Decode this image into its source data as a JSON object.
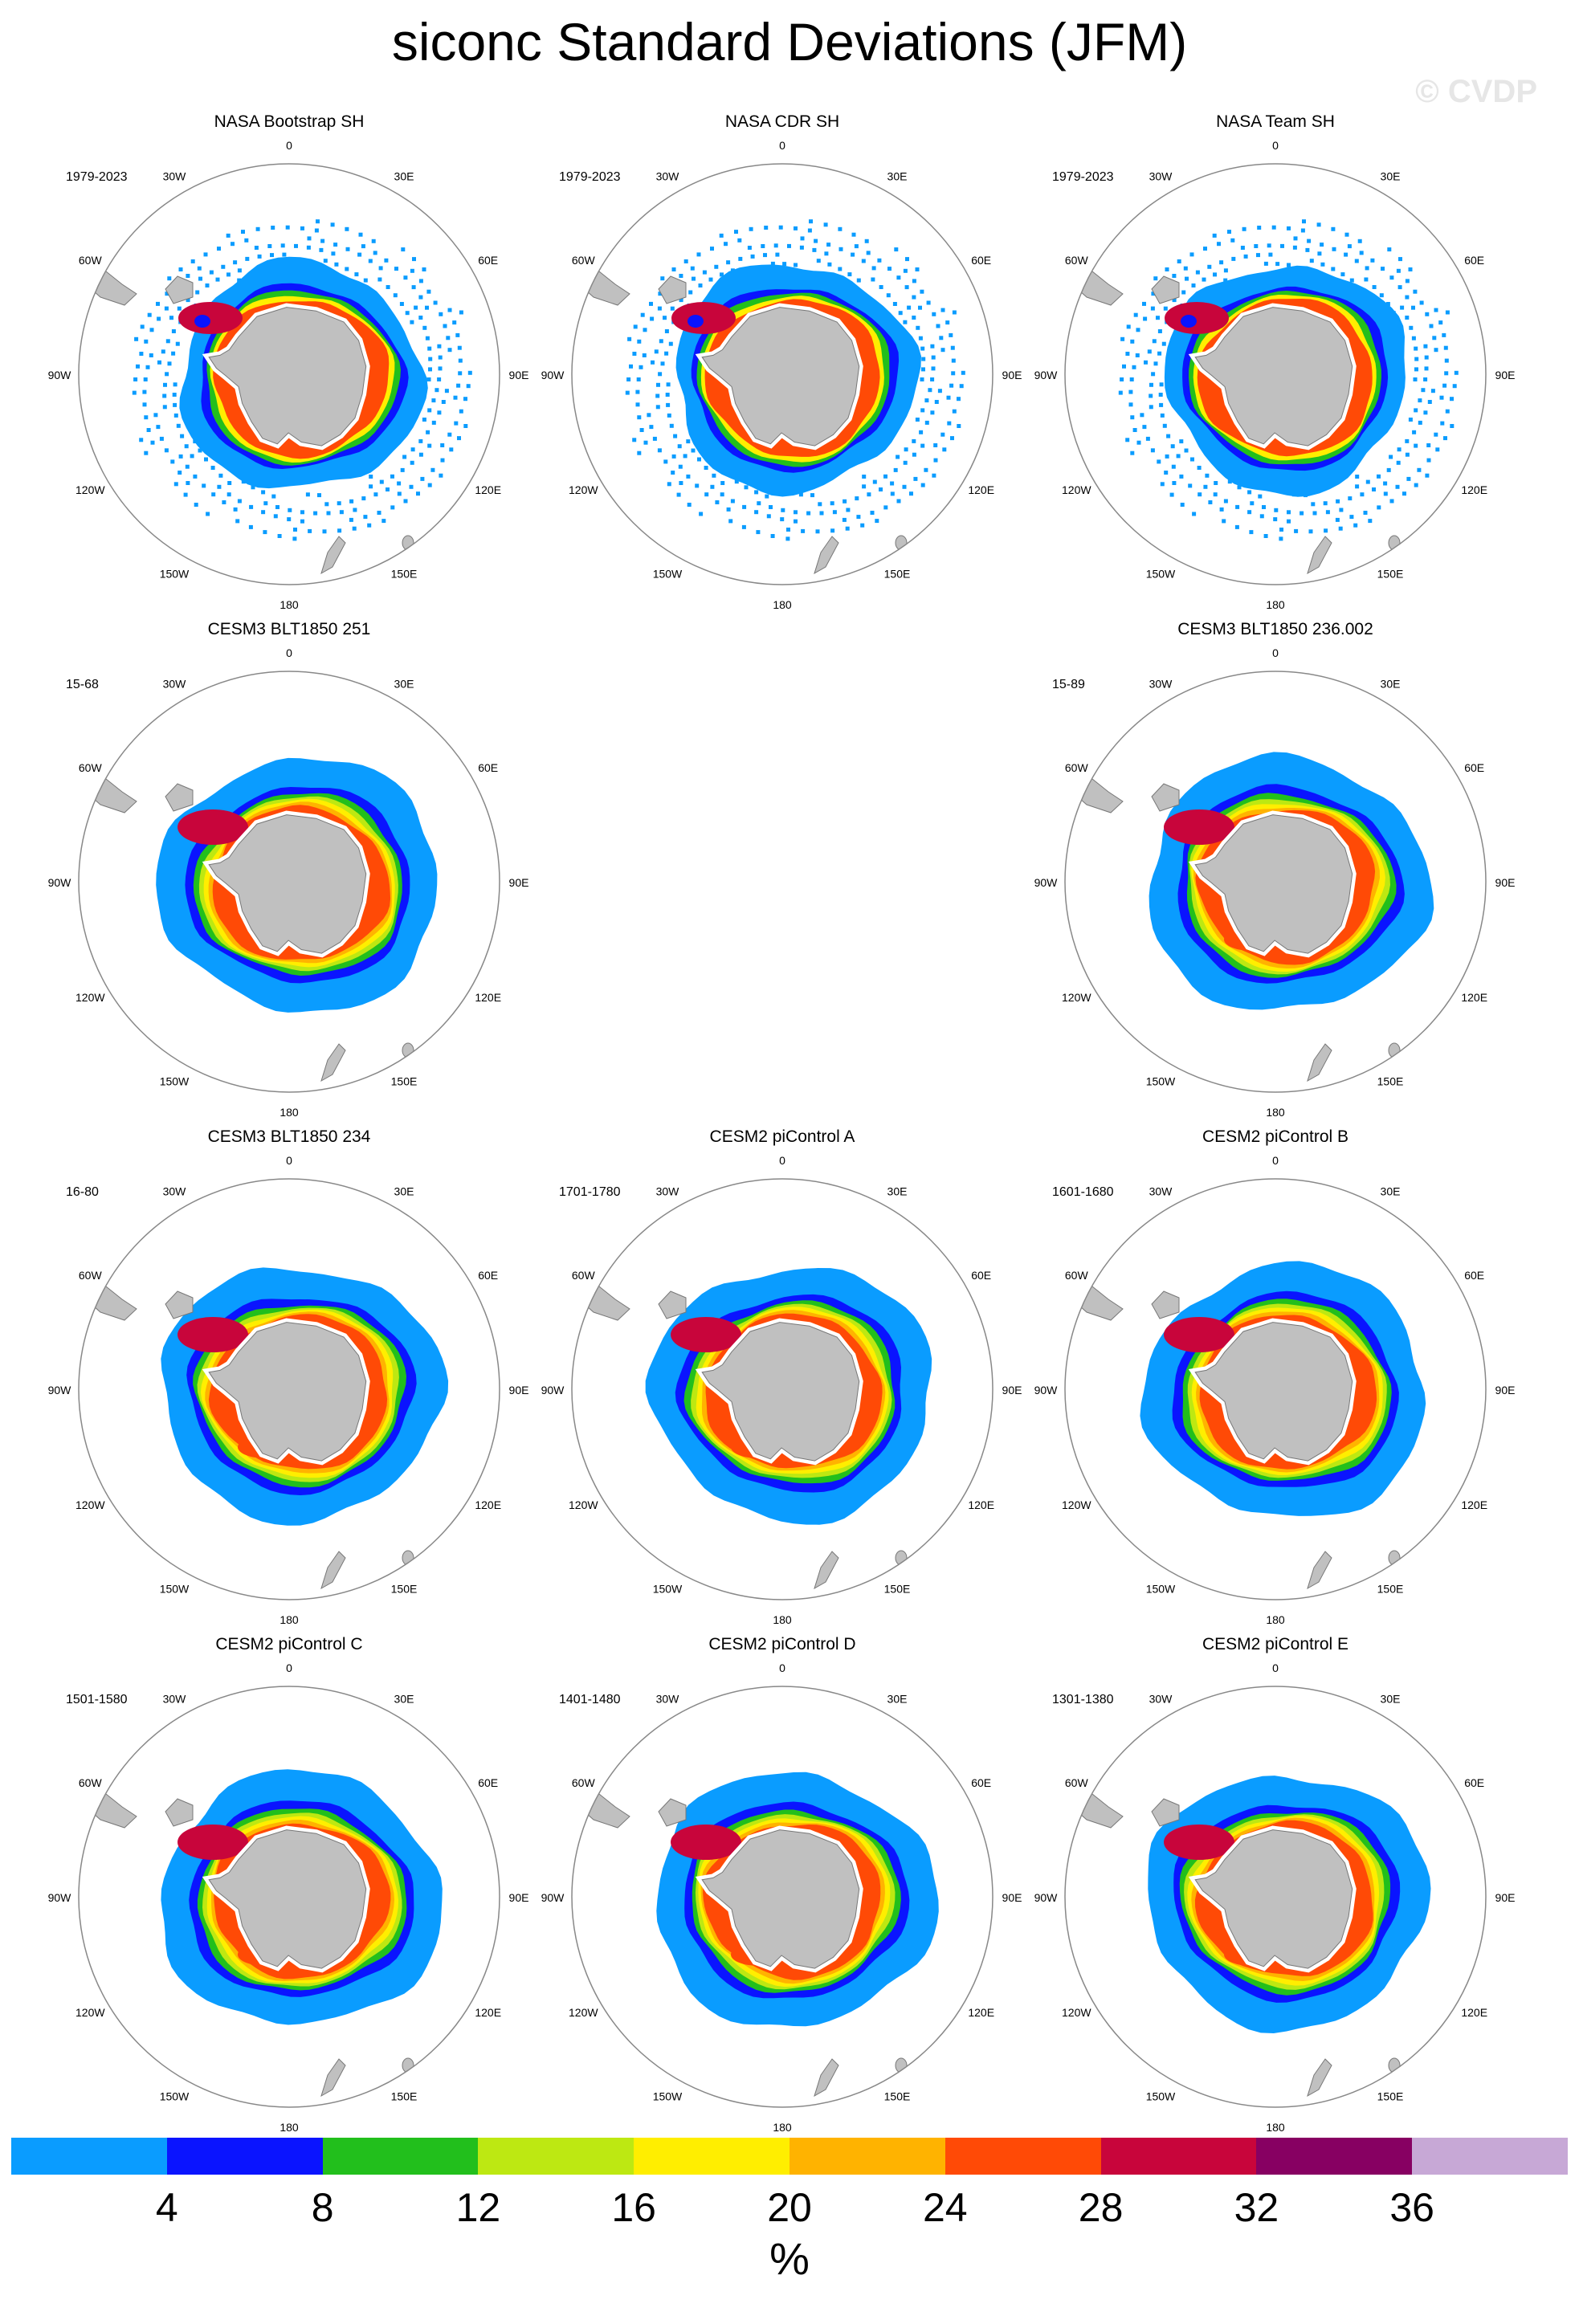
{
  "title": "siconc Standard Deviations (JFM)",
  "watermark": "© CVDP",
  "lon_labels": [
    "0",
    "30E",
    "60E",
    "90E",
    "120E",
    "150E",
    "180",
    "150W",
    "120W",
    "90W",
    "60W",
    "30W"
  ],
  "panels": [
    {
      "title": "NASA Bootstrap SH",
      "period": "1979-2023",
      "kind": "obs"
    },
    {
      "title": "NASA CDR SH",
      "period": "1979-2023",
      "kind": "obs"
    },
    {
      "title": "NASA Team SH",
      "period": "1979-2023",
      "kind": "obs"
    },
    {
      "title": "CESM3 BLT1850 251",
      "period": "15-68",
      "kind": "model"
    },
    null,
    {
      "title": "CESM3 BLT1850 236.002",
      "period": "15-89",
      "kind": "model"
    },
    {
      "title": "CESM3 BLT1850 234",
      "period": "16-80",
      "kind": "model"
    },
    {
      "title": "CESM2 piControl A",
      "period": "1701-1780",
      "kind": "model"
    },
    {
      "title": "CESM2 piControl B",
      "period": "1601-1680",
      "kind": "model"
    },
    {
      "title": "CESM2 piControl C",
      "period": "1501-1580",
      "kind": "model"
    },
    {
      "title": "CESM2 piControl D",
      "period": "1401-1480",
      "kind": "model"
    },
    {
      "title": "CESM2 piControl E",
      "period": "1301-1380",
      "kind": "model"
    }
  ],
  "colorbar": {
    "colors": [
      "#0a9cff",
      "#0a14ff",
      "#22bf1c",
      "#bde812",
      "#ffee00",
      "#ffb300",
      "#ff4a06",
      "#c8053b",
      "#870062",
      "#c7a8d6"
    ],
    "labels": [
      "4",
      "8",
      "12",
      "16",
      "20",
      "24",
      "28",
      "32",
      "36"
    ],
    "unit": "%"
  },
  "palette": {
    "land": "#c0c0c0",
    "circle": "#888888"
  }
}
